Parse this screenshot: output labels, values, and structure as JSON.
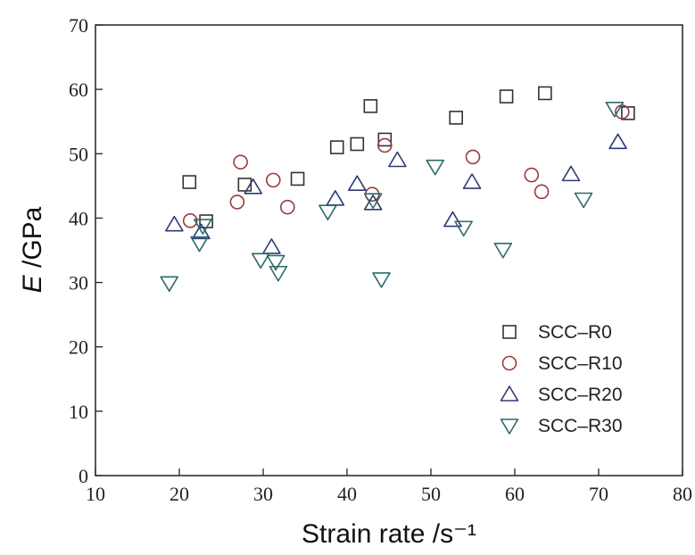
{
  "chart_data": {
    "type": "scatter",
    "title": "",
    "xlabel": "Strain rate /s⁻¹",
    "ylabel_symbol": "E",
    "ylabel_unit": " /GPa",
    "xlim": [
      10,
      80
    ],
    "ylim": [
      0,
      70
    ],
    "x_ticks": [
      10,
      20,
      30,
      40,
      50,
      60,
      70,
      80
    ],
    "y_ticks": [
      0,
      10,
      20,
      30,
      40,
      50,
      60,
      70
    ],
    "grid": false,
    "legend_position": "bottom-right",
    "series": [
      {
        "name": "SCC–R0",
        "marker": "square",
        "color": "#333333",
        "points": [
          [
            21.2,
            45.6
          ],
          [
            23.2,
            39.5
          ],
          [
            27.8,
            45.2
          ],
          [
            34.1,
            46.1
          ],
          [
            38.8,
            51.0
          ],
          [
            41.2,
            51.5
          ],
          [
            42.8,
            57.4
          ],
          [
            44.5,
            52.2
          ],
          [
            53.0,
            55.6
          ],
          [
            59.0,
            58.9
          ],
          [
            63.6,
            59.4
          ],
          [
            73.5,
            56.3
          ]
        ]
      },
      {
        "name": "SCC–R10",
        "marker": "circle",
        "color": "#9b3a3a",
        "points": [
          [
            21.3,
            39.6
          ],
          [
            26.9,
            42.5
          ],
          [
            27.3,
            48.7
          ],
          [
            31.2,
            45.9
          ],
          [
            32.9,
            41.7
          ],
          [
            43.0,
            43.7
          ],
          [
            44.5,
            51.3
          ],
          [
            55.0,
            49.5
          ],
          [
            62.0,
            46.7
          ],
          [
            63.2,
            44.1
          ],
          [
            72.8,
            56.5
          ]
        ]
      },
      {
        "name": "SCC–R20",
        "marker": "triangle-up",
        "color": "#2f3a73",
        "points": [
          [
            19.4,
            39.0
          ],
          [
            22.6,
            37.8
          ],
          [
            28.8,
            44.8
          ],
          [
            31.0,
            35.5
          ],
          [
            38.6,
            43.0
          ],
          [
            41.2,
            45.3
          ],
          [
            43.1,
            42.3
          ],
          [
            46.0,
            49.0
          ],
          [
            52.6,
            39.7
          ],
          [
            54.9,
            45.6
          ],
          [
            66.7,
            46.8
          ],
          [
            72.3,
            51.8
          ]
        ]
      },
      {
        "name": "SCC–R30",
        "marker": "triangle-down",
        "color": "#2e6b6b",
        "points": [
          [
            18.8,
            29.9
          ],
          [
            22.4,
            36.1
          ],
          [
            22.8,
            38.8
          ],
          [
            29.7,
            33.5
          ],
          [
            31.5,
            33.2
          ],
          [
            31.8,
            31.5
          ],
          [
            37.7,
            41.0
          ],
          [
            43.1,
            42.8
          ],
          [
            44.1,
            30.5
          ],
          [
            50.5,
            48.0
          ],
          [
            53.9,
            38.5
          ],
          [
            58.6,
            35.1
          ],
          [
            68.2,
            42.9
          ],
          [
            71.9,
            57.0
          ]
        ]
      }
    ]
  }
}
